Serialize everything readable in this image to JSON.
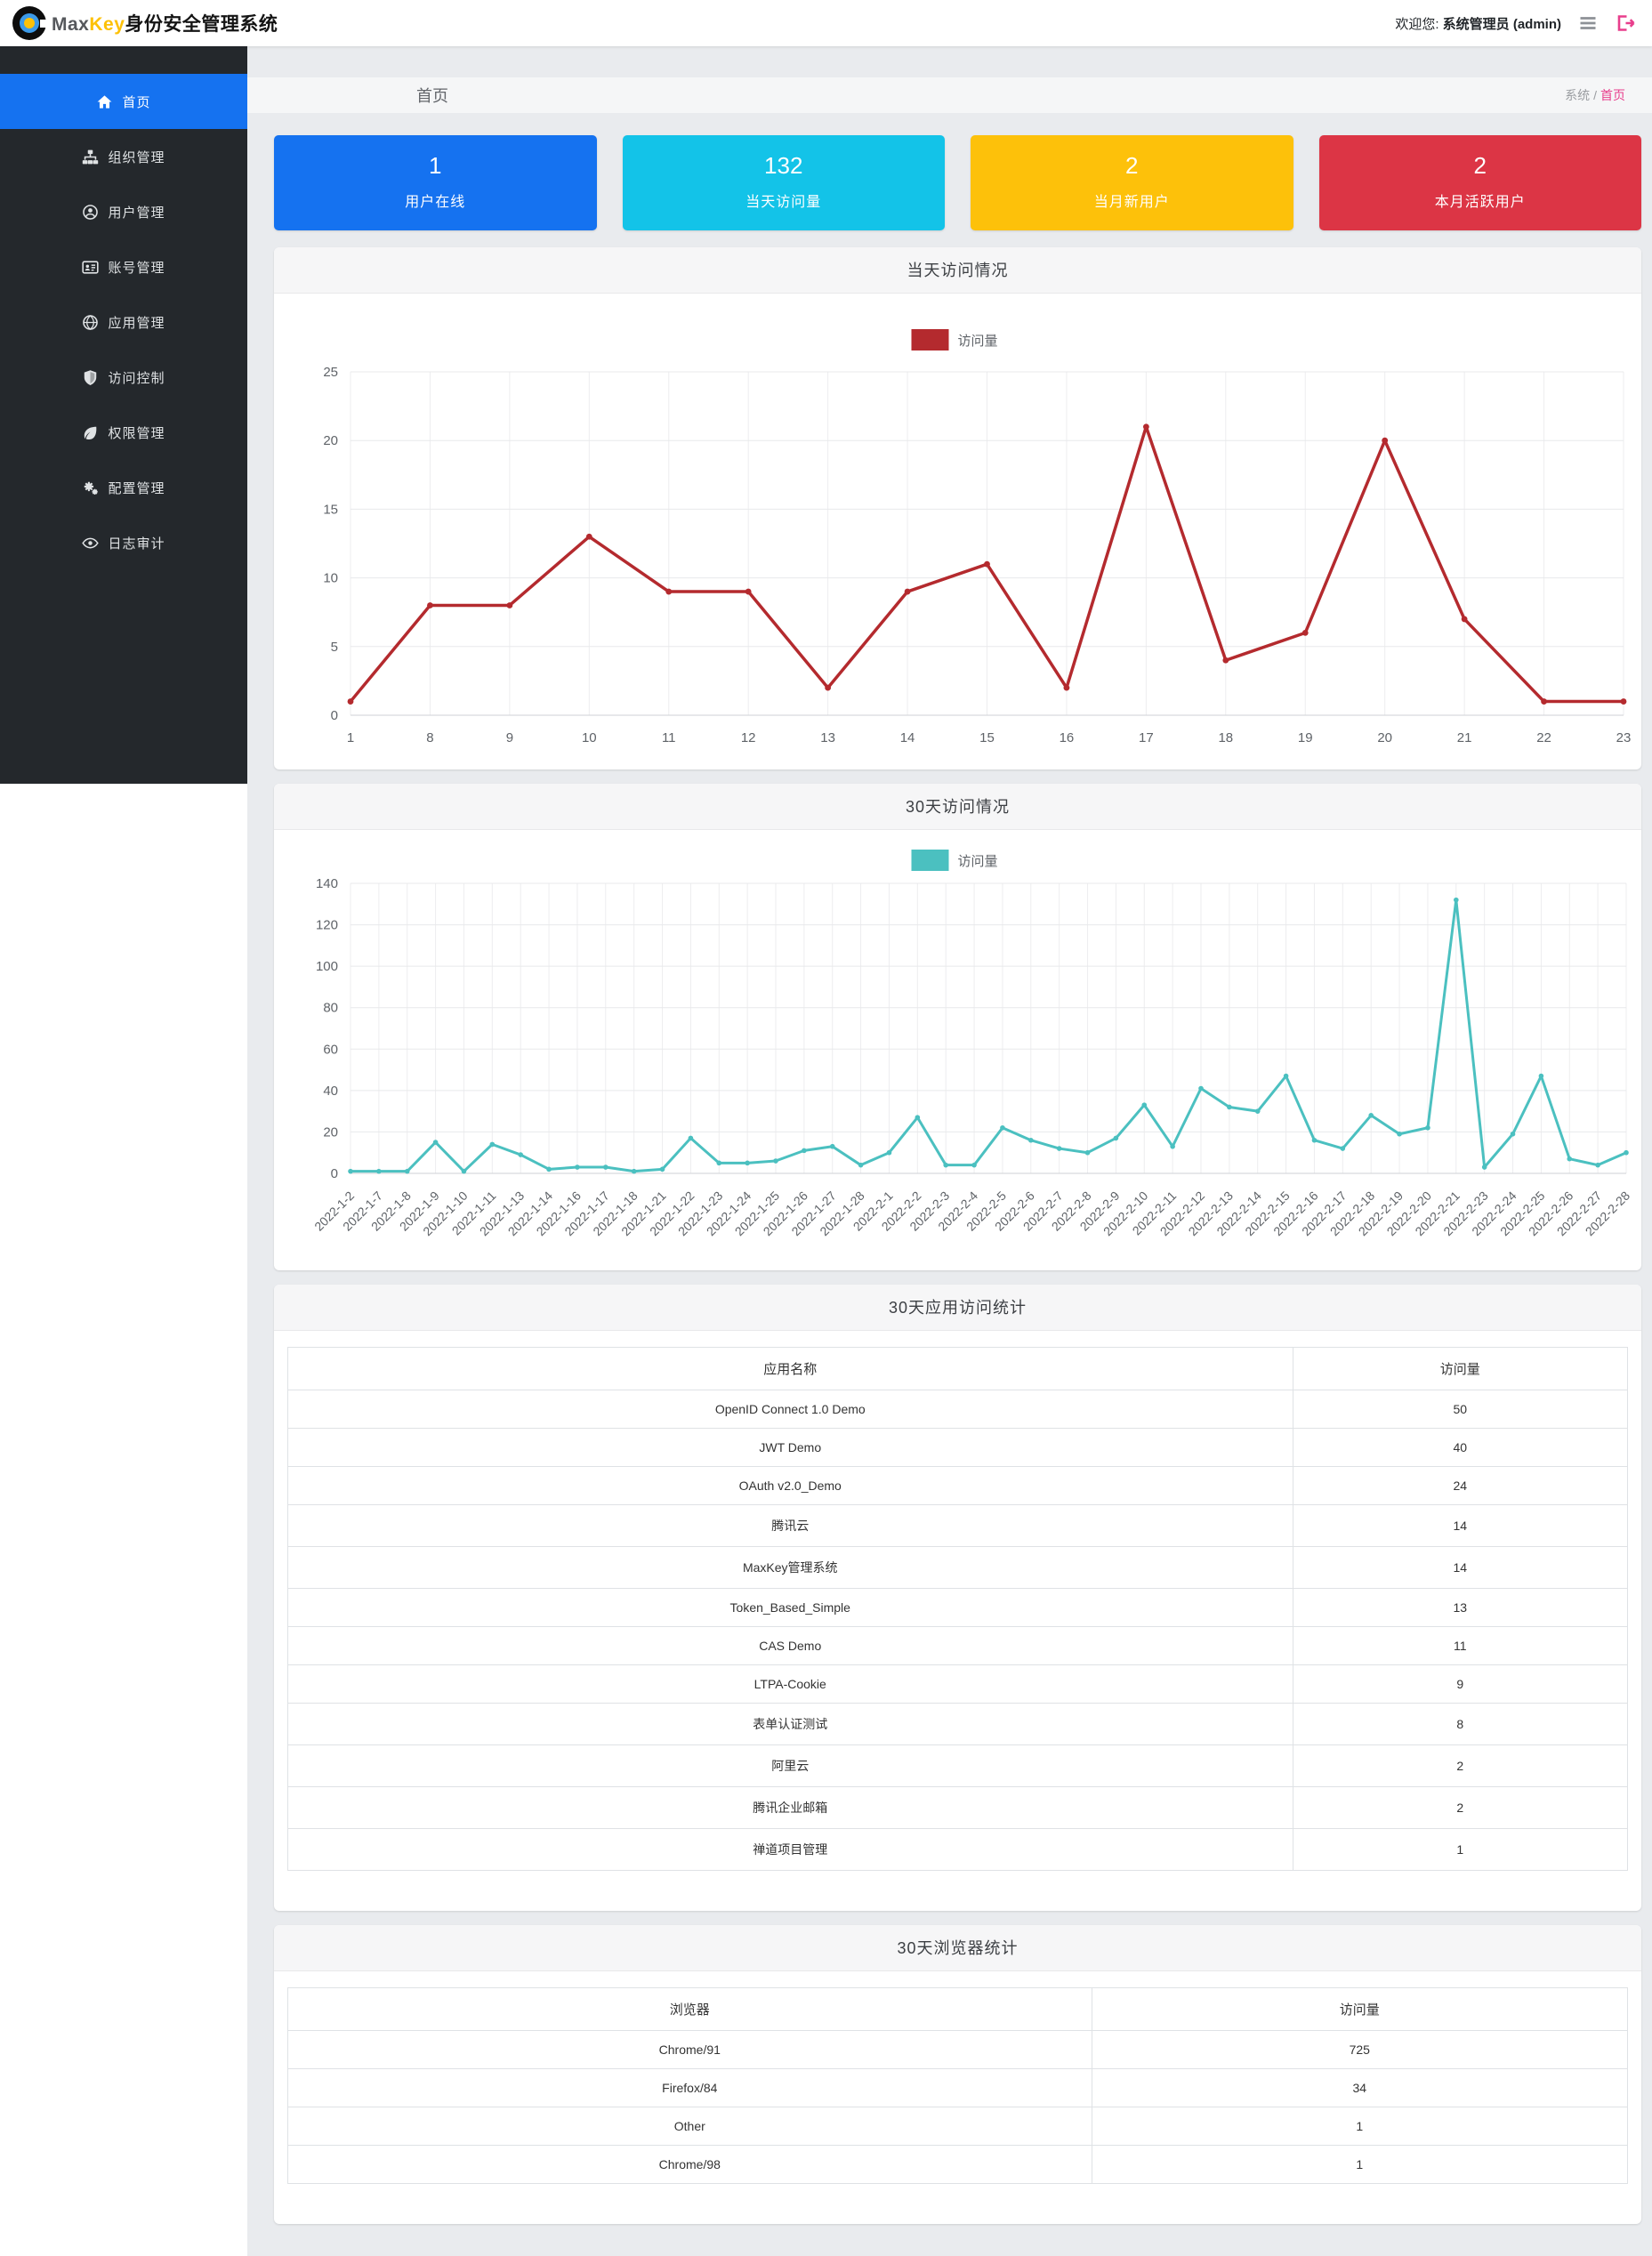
{
  "colors": {
    "sidebar_active": "#1572f0",
    "breadcrumb_current": "#e83e8c",
    "brand_key": "#fdc107"
  },
  "header": {
    "brand_max": "Max",
    "brand_key": "Key",
    "brand_suffix": "身份安全管理系统",
    "welcome_prefix": "欢迎您:",
    "welcome_user": "系统管理员 (admin)"
  },
  "breadcrumb": {
    "page_title": "首页",
    "root": "系统",
    "separator": "/",
    "current": "首页"
  },
  "sidebar": {
    "items": [
      {
        "key": "home",
        "icon": "home-icon",
        "label": "首页",
        "active": true
      },
      {
        "key": "org",
        "icon": "sitemap-icon",
        "label": "组织管理",
        "active": false
      },
      {
        "key": "users",
        "icon": "user-icon",
        "label": "用户管理",
        "active": false
      },
      {
        "key": "accounts",
        "icon": "id-card-icon",
        "label": "账号管理",
        "active": false
      },
      {
        "key": "apps",
        "icon": "globe-icon",
        "label": "应用管理",
        "active": false
      },
      {
        "key": "access-control",
        "icon": "shield-icon",
        "label": "访问控制",
        "active": false
      },
      {
        "key": "permissions",
        "icon": "leaf-icon",
        "label": "权限管理",
        "active": false
      },
      {
        "key": "config",
        "icon": "gears-icon",
        "label": "配置管理",
        "active": false
      },
      {
        "key": "audit",
        "icon": "eye-icon",
        "label": "日志审计",
        "active": false
      }
    ]
  },
  "stat_cards": [
    {
      "key": "online-users",
      "value": "1",
      "label": "用户在线",
      "color": "#1572f0"
    },
    {
      "key": "today-visits",
      "value": "132",
      "label": "当天访问量",
      "color": "#13c3e8"
    },
    {
      "key": "new-users-month",
      "value": "2",
      "label": "当月新用户",
      "color": "#fdc10a"
    },
    {
      "key": "active-users-month",
      "value": "2",
      "label": "本月活跃用户",
      "color": "#dc3545"
    }
  ],
  "chart_data": [
    {
      "type": "line",
      "name": "today-visits-chart",
      "title": "当天访问情况",
      "legend": "访问量",
      "legend_position": "top",
      "grid": true,
      "color": "#b42a2e",
      "x": [
        "1",
        "8",
        "9",
        "10",
        "11",
        "12",
        "13",
        "14",
        "15",
        "16",
        "17",
        "18",
        "19",
        "20",
        "21",
        "22",
        "23"
      ],
      "values": [
        1,
        8,
        8,
        13,
        9,
        9,
        2,
        9,
        11,
        2,
        21,
        4,
        6,
        20,
        7,
        1,
        1
      ],
      "ylim": [
        0,
        25
      ],
      "yticks": [
        0,
        5,
        10,
        15,
        20,
        25
      ]
    },
    {
      "type": "line",
      "name": "monthly-visits-chart",
      "title": "30天访问情况",
      "legend": "访问量",
      "legend_position": "top",
      "grid": true,
      "color": "#4bc0c0",
      "x": [
        "2022-1-2",
        "2022-1-7",
        "2022-1-8",
        "2022-1-9",
        "2022-1-10",
        "2022-1-11",
        "2022-1-13",
        "2022-1-14",
        "2022-1-16",
        "2022-1-17",
        "2022-1-18",
        "2022-1-21",
        "2022-1-22",
        "2022-1-23",
        "2022-1-24",
        "2022-1-25",
        "2022-1-26",
        "2022-1-27",
        "2022-1-28",
        "2022-2-1",
        "2022-2-2",
        "2022-2-3",
        "2022-2-4",
        "2022-2-5",
        "2022-2-6",
        "2022-2-7",
        "2022-2-8",
        "2022-2-9",
        "2022-2-10",
        "2022-2-11",
        "2022-2-12",
        "2022-2-13",
        "2022-2-14",
        "2022-2-15",
        "2022-2-16",
        "2022-2-17",
        "2022-2-18",
        "2022-2-19",
        "2022-2-20",
        "2022-2-21",
        "2022-2-23",
        "2022-2-24",
        "2022-2-25",
        "2022-2-26",
        "2022-2-27",
        "2022-2-28"
      ],
      "values": [
        1,
        1,
        1,
        15,
        1,
        14,
        9,
        2,
        3,
        3,
        1,
        2,
        17,
        5,
        5,
        6,
        11,
        13,
        4,
        10,
        27,
        4,
        4,
        22,
        16,
        12,
        10,
        17,
        33,
        13,
        41,
        32,
        30,
        47,
        16,
        12,
        28,
        19,
        22,
        132,
        3,
        19,
        47,
        7,
        4,
        10
      ],
      "ylim": [
        0,
        140
      ],
      "yticks": [
        0,
        20,
        40,
        60,
        80,
        100,
        120,
        140
      ]
    }
  ],
  "tables": [
    {
      "name": "app-stats-table",
      "title": "30天应用访问统计",
      "headers": [
        "应用名称",
        "访问量"
      ],
      "col_widths": [
        "75%",
        "25%"
      ],
      "rows": [
        [
          "OpenID Connect 1.0 Demo",
          "50"
        ],
        [
          "JWT Demo",
          "40"
        ],
        [
          "OAuth v2.0_Demo",
          "24"
        ],
        [
          "腾讯云",
          "14"
        ],
        [
          "MaxKey管理系统",
          "14"
        ],
        [
          "Token_Based_Simple",
          "13"
        ],
        [
          "CAS Demo",
          "11"
        ],
        [
          "LTPA-Cookie",
          "9"
        ],
        [
          "表单认证测试",
          "8"
        ],
        [
          "阿里云",
          "2"
        ],
        [
          "腾讯企业邮箱",
          "2"
        ],
        [
          "禅道项目管理",
          "1"
        ]
      ]
    },
    {
      "name": "browser-stats-table",
      "title": "30天浏览器统计",
      "headers": [
        "浏览器",
        "访问量"
      ],
      "col_widths": [
        "60%",
        "40%"
      ],
      "rows": [
        [
          "Chrome/91",
          "725"
        ],
        [
          "Firefox/84",
          "34"
        ],
        [
          "Other",
          "1"
        ],
        [
          "Chrome/98",
          "1"
        ]
      ]
    }
  ]
}
